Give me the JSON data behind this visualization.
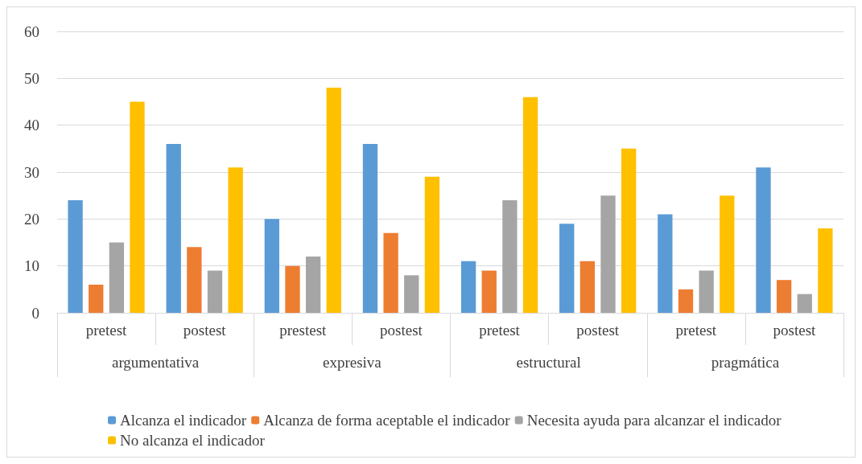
{
  "chart_data": {
    "type": "bar",
    "categories": [
      "pretest",
      "postest",
      "prestest",
      "postest",
      "pretest",
      "postest",
      "pretest",
      "postest"
    ],
    "annotations": [
      "argumentativa",
      "expresiva",
      "estructural",
      "pragmática"
    ],
    "series": [
      {
        "name": "Alcanza el indicador",
        "color": "#5b9bd5",
        "values": [
          24,
          36,
          20,
          36,
          11,
          19,
          21,
          31
        ]
      },
      {
        "name": "Alcanza de forma aceptable el indicador",
        "color": "#ed7d31",
        "values": [
          6,
          14,
          10,
          17,
          9,
          11,
          5,
          7
        ]
      },
      {
        "name": "Necesita ayuda para alcanzar el indicador",
        "color": "#a5a5a5",
        "values": [
          15,
          9,
          12,
          8,
          24,
          25,
          9,
          4
        ]
      },
      {
        "name": "No alcanza el indicador",
        "color": "#ffc000",
        "values": [
          45,
          31,
          48,
          29,
          46,
          35,
          25,
          18
        ]
      }
    ],
    "ylim": [
      0,
      60
    ],
    "yticks": [
      0,
      10,
      20,
      30,
      40,
      50,
      60
    ],
    "grid": "y",
    "legend": "bottom"
  }
}
